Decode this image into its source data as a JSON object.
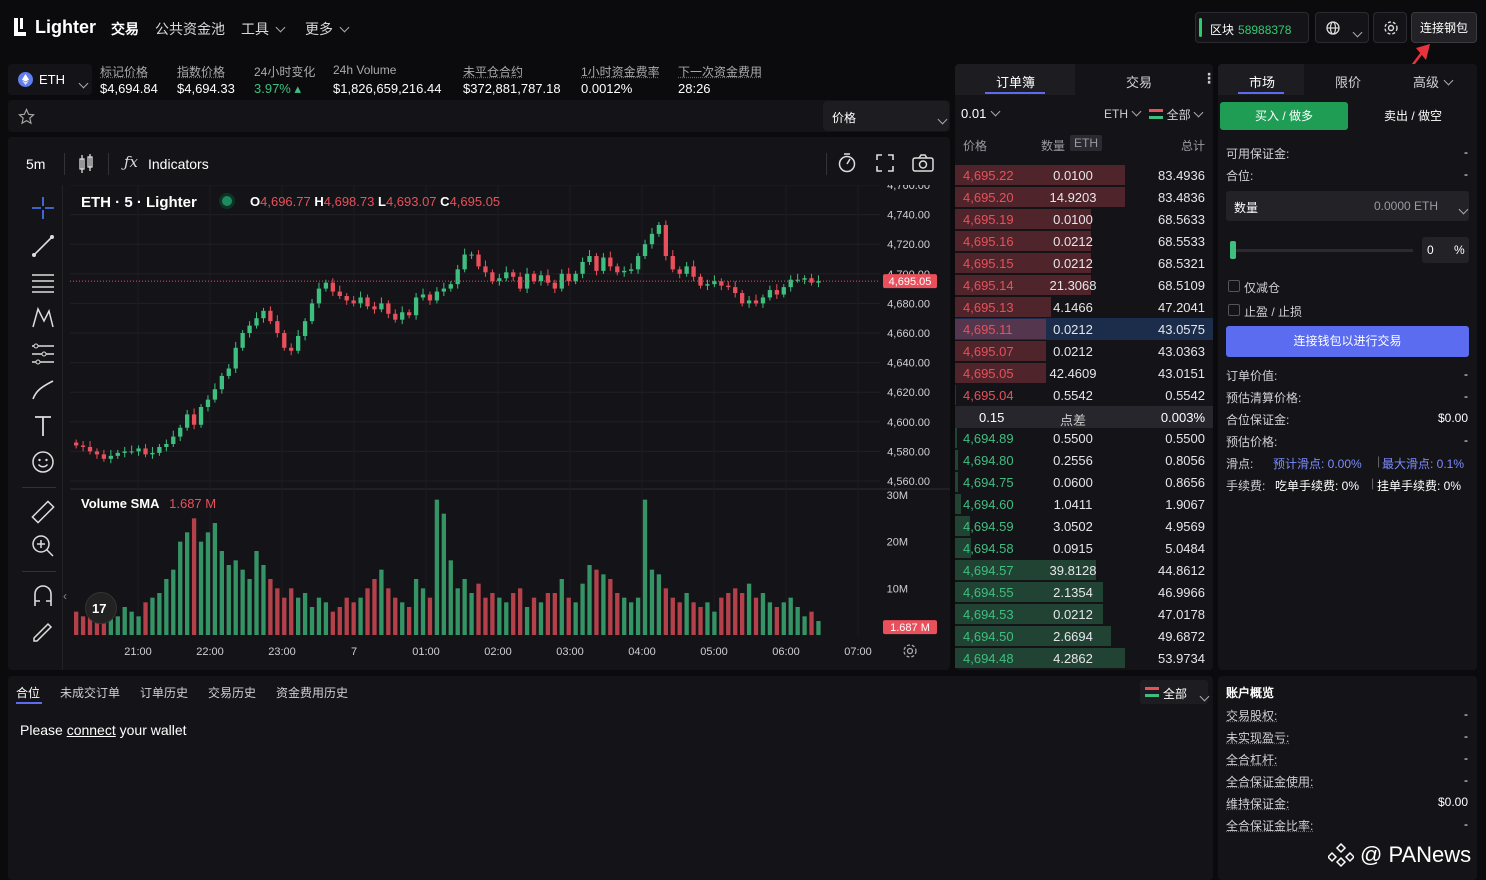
{
  "app": {
    "name": "Lighter"
  },
  "nav": {
    "items": [
      "交易",
      "公共资金池",
      "工具",
      "更多"
    ]
  },
  "header": {
    "block_label": "区块",
    "block_number": "58988378",
    "wallet_button": "连接钢包"
  },
  "ticker": {
    "symbol": "ETH",
    "stats": [
      {
        "label": "标记价格",
        "value": "$4,694.84"
      },
      {
        "label": "指数价格",
        "value": "$4,694.33"
      },
      {
        "label": "24小时变化",
        "value": "3.97% ▴"
      },
      {
        "label": "24h Volume",
        "value": "$1,826,659,216.44"
      },
      {
        "label": "未平仓合约",
        "value": "$372,881,787.18"
      },
      {
        "label": "1小时资金费率",
        "value": "0.0012%"
      },
      {
        "label": "下一次资金费用",
        "value": "28:26"
      }
    ]
  },
  "chart_toolbar": {
    "price_select": "价格",
    "interval": "5m",
    "indicators": "Indicators"
  },
  "chart_data": {
    "type": "candlestick",
    "legend": "ETH · 5 · Lighter",
    "ohlc": {
      "o": "4,696.77",
      "h": "4,698.73",
      "l": "4,693.07",
      "c": "4,695.05"
    },
    "y_ticks": [
      "4,760.00",
      "4,740.00",
      "4,720.00",
      "4,700.00",
      "4,680.00",
      "4,660.00",
      "4,640.00",
      "4,620.00",
      "4,600.00",
      "4,580.00",
      "4,560.00"
    ],
    "ylim": [
      4560,
      4760
    ],
    "x_ticks": [
      "21:00",
      "22:00",
      "23:00",
      "7",
      "01:00",
      "02:00",
      "03:00",
      "04:00",
      "05:00",
      "06:00",
      "07:00"
    ],
    "last_price_label": "4,695.05",
    "volume_title": "Volume SMA",
    "volume_sma": "1.687 M",
    "volume_ticks": [
      "30M",
      "20M",
      "10M"
    ],
    "volume_last_label": "1.687 M",
    "closes": [
      4584,
      4583,
      4580,
      4578,
      4575,
      4577,
      4579,
      4580,
      4580,
      4582,
      4578,
      4579,
      4583,
      4585,
      4590,
      4596,
      4605,
      4598,
      4610,
      4615,
      4622,
      4631,
      4636,
      4650,
      4660,
      4665,
      4670,
      4675,
      4668,
      4660,
      4650,
      4648,
      4658,
      4668,
      4680,
      4690,
      4694,
      4688,
      4685,
      4682,
      4680,
      4684,
      4678,
      4676,
      4680,
      4673,
      4669,
      4674,
      4672,
      4684,
      4686,
      4682,
      4688,
      4690,
      4693,
      4703,
      4713,
      4713,
      4705,
      4701,
      4695,
      4697,
      4701,
      4698,
      4690,
      4700,
      4695,
      4699,
      4694,
      4690,
      4700,
      4695,
      4700,
      4708,
      4712,
      4702,
      4711,
      4705,
      4701,
      4702,
      4703,
      4712,
      4720,
      4727,
      4733,
      4712,
      4703,
      4700,
      4705,
      4698,
      4692,
      4693,
      4695,
      4692,
      4691,
      4687,
      4680,
      4682,
      4680,
      4684,
      4689,
      4686,
      4691,
      4696,
      4696,
      4697,
      4694,
      4695
    ],
    "volumes": [
      5,
      4,
      6,
      3,
      5,
      4,
      4,
      6,
      5,
      4,
      7,
      8,
      9,
      12,
      14,
      20,
      22,
      25,
      20,
      22,
      24,
      18,
      15,
      16,
      14,
      12,
      18,
      15,
      12,
      10,
      8,
      10,
      8,
      9,
      6,
      8,
      7,
      5,
      6,
      8,
      7,
      8,
      10,
      12,
      14,
      10,
      8,
      7,
      6,
      12,
      10,
      8,
      29,
      26,
      16,
      10,
      12,
      9,
      11,
      8,
      9,
      8,
      7,
      9,
      10,
      6,
      8,
      7,
      9,
      9,
      12,
      8,
      7,
      11,
      15,
      14,
      13,
      12,
      9,
      8,
      7,
      8,
      29,
      14,
      13,
      10,
      8,
      7,
      9,
      7,
      6,
      7,
      5,
      8,
      9,
      10,
      9,
      11,
      8,
      9,
      7,
      6,
      7,
      8,
      6,
      4,
      5,
      3
    ]
  },
  "orderbook": {
    "tabs": [
      "订单簿",
      "交易"
    ],
    "tick_size": "0.01",
    "unit": "ETH",
    "filter": "全部",
    "headers": [
      "价格",
      "数量",
      "ETH",
      "总计"
    ],
    "asks": [
      [
        "4,695.22",
        "0.0100",
        "83.4936"
      ],
      [
        "4,695.20",
        "14.9203",
        "83.4836"
      ],
      [
        "4,695.19",
        "0.0100",
        "68.5633"
      ],
      [
        "4,695.16",
        "0.0212",
        "68.5533"
      ],
      [
        "4,695.15",
        "0.0212",
        "68.5321"
      ],
      [
        "4,695.14",
        "21.3068",
        "68.5109"
      ],
      [
        "4,695.13",
        "4.1466",
        "47.2041"
      ],
      [
        "4,695.11",
        "0.0212",
        "43.0575"
      ],
      [
        "4,695.07",
        "0.0212",
        "43.0363"
      ],
      [
        "4,695.05",
        "42.4609",
        "43.0151"
      ],
      [
        "4,695.04",
        "0.5542",
        "0.5542"
      ]
    ],
    "spread": {
      "value": "0.15",
      "label": "点差",
      "pct": "0.003%"
    },
    "bids": [
      [
        "4,694.89",
        "0.5500",
        "0.5500"
      ],
      [
        "4,694.80",
        "0.2556",
        "0.8056"
      ],
      [
        "4,694.75",
        "0.0600",
        "0.8656"
      ],
      [
        "4,694.60",
        "1.0411",
        "1.9067"
      ],
      [
        "4,694.59",
        "3.0502",
        "4.9569"
      ],
      [
        "4,694.58",
        "0.0915",
        "5.0484"
      ],
      [
        "4,694.57",
        "39.8128",
        "44.8612"
      ],
      [
        "4,694.55",
        "2.1354",
        "46.9966"
      ],
      [
        "4,694.53",
        "0.0212",
        "47.0178"
      ],
      [
        "4,694.50",
        "2.6694",
        "49.6872"
      ],
      [
        "4,694.48",
        "4.2862",
        "53.9734"
      ]
    ],
    "ask_depth": [
      1.5,
      1.5,
      1.2,
      1.2,
      1.2,
      1.2,
      0.85,
      0.8,
      0.8,
      0.8,
      0.01
    ],
    "bid_depth": [
      0.01,
      0.015,
      0.016,
      0.035,
      0.09,
      0.095,
      0.83,
      0.87,
      0.87,
      0.92,
      1
    ]
  },
  "trade_panel": {
    "tabs": [
      "市场",
      "限价",
      "高级"
    ],
    "buy": "买入 / 做多",
    "sell": "卖出 / 做空",
    "available_label": "可用保证金:",
    "available_value": "-",
    "position_label": "合位:",
    "position_value": "-",
    "qty_label": "数量",
    "qty_value": "0.0000 ETH",
    "slider_value": "0",
    "slider_unit": "%",
    "reduce_only": "仅减仓",
    "tp_sl": "止盈 / 止损",
    "connect_button": "连接钱包以进行交易",
    "info": [
      {
        "label": "订单价值:",
        "value": "-"
      },
      {
        "label": "预估清算价格:",
        "value": "-"
      },
      {
        "label": "合位保证金:",
        "value": "$0.00"
      },
      {
        "label": "预估价格:",
        "value": "-"
      }
    ],
    "slippage_label": "滑点:",
    "slippage_est": "预计滑点: 0.00%",
    "slippage_max": "最大滑点: 0.1%",
    "fee_label": "手续费:",
    "fee_taker": "吃单手续费: 0%",
    "fee_maker": "挂单手续费: 0%"
  },
  "bottom": {
    "tabs": [
      "合位",
      "未成交订单",
      "订单历史",
      "交易历史",
      "资金费用历史"
    ],
    "filter": "全部",
    "msg_pre": "Please ",
    "msg_link": "connect",
    "msg_post": " your wallet"
  },
  "account": {
    "title": "账户概览",
    "rows": [
      {
        "label": "交易股权:",
        "value": "-"
      },
      {
        "label": "未实现盈亏:",
        "value": "-"
      },
      {
        "label": "全合杠杆:",
        "value": "-"
      },
      {
        "label": "全合保证金使用:",
        "value": "-"
      },
      {
        "label": "维持保证金:",
        "value": "$0.00"
      },
      {
        "label": "全合保证金比率:",
        "value": "-"
      }
    ]
  },
  "watermark": "@ PANews",
  "colors": {
    "up": "#3fbf7f",
    "down": "#e9505b",
    "accent": "#5b6cf0",
    "buy": "#1f9d55"
  }
}
